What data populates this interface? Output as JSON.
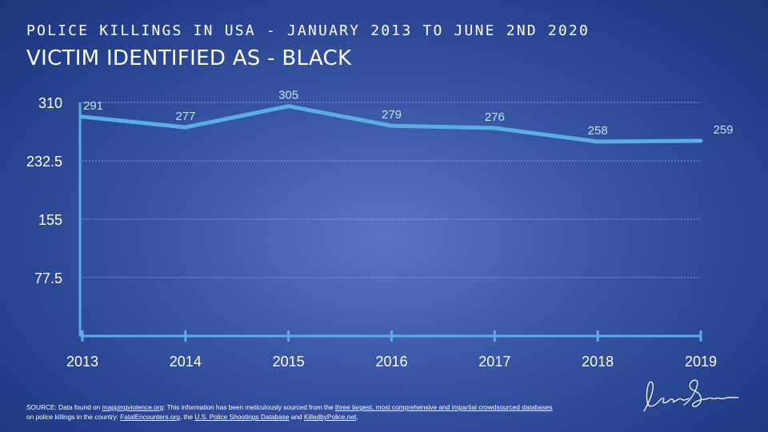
{
  "header": {
    "supertitle": "POLICE KILLINGS IN USA - JANUARY 2013 TO JUNE 2ND 2020",
    "title": "VICTIM IDENTIFIED AS - BLACK"
  },
  "chart_data": {
    "type": "line",
    "x": [
      "2013",
      "2014",
      "2015",
      "2016",
      "2017",
      "2018",
      "2019"
    ],
    "series": [
      {
        "values": [
          291,
          277,
          305,
          279,
          276,
          258,
          259
        ]
      }
    ],
    "yticks": [
      "77.5",
      "155",
      "232.5",
      "310"
    ],
    "ylim": [
      0,
      310
    ],
    "grid": true,
    "line_color": "#5aaee0",
    "label_color": "#bfe3f7",
    "title": "",
    "xlabel": "",
    "ylabel": ""
  },
  "footer": {
    "source_parts": [
      {
        "text": "SOURCE: Data found on ",
        "u": false
      },
      {
        "text": "mappingviolence.org",
        "u": true
      },
      {
        "text": ": This information has been meticulously sourced from the ",
        "u": false
      },
      {
        "text": "three largest, most comprehensive and impartial crowdsourced databases",
        "u": true
      },
      {
        "text": " on police killings in the country: ",
        "u": false
      },
      {
        "text": "FatalEncounters.org",
        "u": true
      },
      {
        "text": ", the ",
        "u": false
      },
      {
        "text": "U.S. Police Shootings Database",
        "u": true
      },
      {
        "text": " and ",
        "u": false
      },
      {
        "text": "KilledbyPolice.net",
        "u": true
      },
      {
        "text": ".",
        "u": false
      }
    ]
  }
}
